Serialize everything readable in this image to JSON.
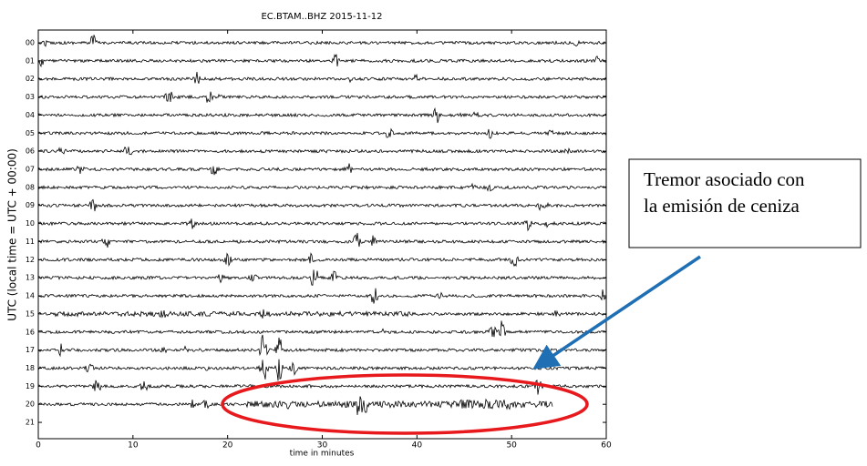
{
  "chart_data": {
    "type": "helicorder",
    "title": "EC.BTAM..BHZ 2015-11-12",
    "xlabel": "time in minutes",
    "ylabel": "UTC (local time = UTC + 00:00)",
    "categories": [
      "00",
      "01",
      "02",
      "03",
      "04",
      "05",
      "06",
      "07",
      "08",
      "09",
      "10",
      "11",
      "12",
      "13",
      "14",
      "15",
      "16",
      "17",
      "18",
      "19",
      "20",
      "21"
    ],
    "xlim": [
      0,
      60
    ],
    "xticks": [
      0,
      10,
      20,
      30,
      40,
      50,
      60
    ],
    "annotation": [
      "Tremor asociado con",
      "la emisión de ceniza"
    ]
  }
}
